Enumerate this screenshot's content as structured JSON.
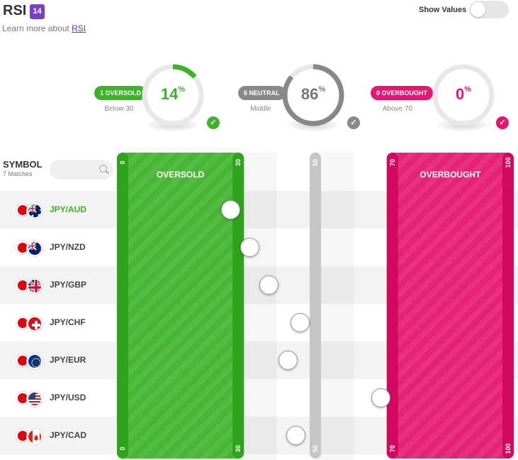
{
  "header": {
    "title": "RSI",
    "period_badge": "14",
    "learn_prefix": "Learn more about",
    "learn_link": "RSI",
    "show_values_label": "Show Values",
    "show_values_on": false
  },
  "summary": [
    {
      "pill": "1 OVERSOLD",
      "sub": "Below 30",
      "value": "14",
      "unit": "%",
      "fraction": 0.14,
      "color": "#3db22a",
      "check": "✓"
    },
    {
      "pill": "6 NEUTRAL",
      "sub": "Middle",
      "value": "86",
      "unit": "%",
      "fraction": 0.86,
      "color": "#888888",
      "check": "✓"
    },
    {
      "pill": "0 OVERBOUGHT",
      "sub": "Above 70",
      "value": "0",
      "unit": "%",
      "fraction": 0.0,
      "color": "#e5166f",
      "check": "✓"
    }
  ],
  "table": {
    "symbol_header": "SYMBOL",
    "matches": "7 Matches",
    "search_placeholder": ""
  },
  "zones": {
    "oversold_label": "OVERSOLD",
    "overbought_label": "OVERBOUGHT",
    "tick_0": "0",
    "tick_30": "30",
    "tick_50": "50",
    "tick_70": "70",
    "tick_100": "100",
    "green": "#3db22a",
    "pink": "#e5166f",
    "grey": "#c6c6c6"
  },
  "rows": [
    {
      "pair": "JPY/AUD",
      "flag": "au-flag-icon",
      "rsi": 28,
      "highlight": true
    },
    {
      "pair": "JPY/NZD",
      "flag": "nz-flag-icon",
      "rsi": 33,
      "highlight": false
    },
    {
      "pair": "JPY/GBP",
      "flag": "gb-flag-icon",
      "rsi": 38,
      "highlight": false
    },
    {
      "pair": "JPY/CHF",
      "flag": "ch-flag-icon",
      "rsi": 46,
      "highlight": false
    },
    {
      "pair": "JPY/EUR",
      "flag": "eu-flag-icon",
      "rsi": 43,
      "highlight": false
    },
    {
      "pair": "JPY/USD",
      "flag": "us-flag-icon",
      "rsi": 67,
      "highlight": false
    },
    {
      "pair": "JPY/CAD",
      "flag": "ca-flag-icon",
      "rsi": 45,
      "highlight": false
    }
  ]
}
